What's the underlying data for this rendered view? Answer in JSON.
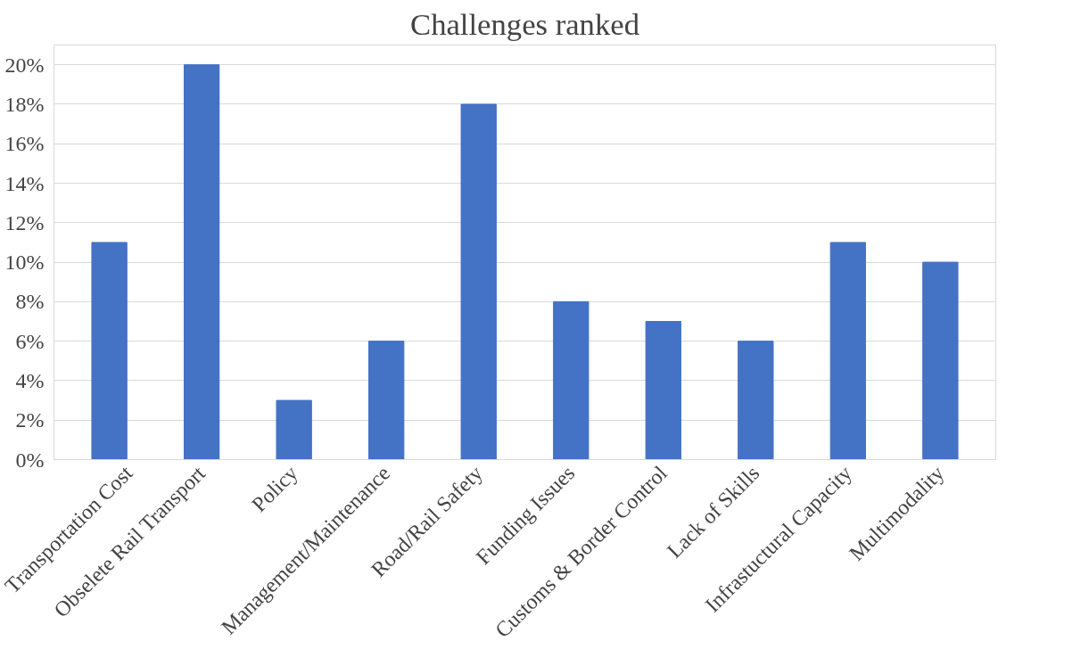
{
  "chart_data": {
    "type": "bar",
    "title": "Challenges ranked",
    "categories": [
      "Transportation Cost",
      "Obselete Rail Transport",
      "Policy",
      "Management/Maintenance",
      "Road/Rail Safety",
      "Funding Issues",
      "Customs & Border Control",
      "Lack of Skills",
      "Infrastuctural Capacity",
      "Multimodality"
    ],
    "values": [
      11,
      20,
      3,
      6,
      18,
      8,
      7,
      6,
      11,
      10
    ],
    "color": "#4472c4",
    "ylim": [
      0,
      21
    ],
    "yticks": [
      {
        "value": 0,
        "label": "0%"
      },
      {
        "value": 2,
        "label": "2%"
      },
      {
        "value": 4,
        "label": "4%"
      },
      {
        "value": 6,
        "label": "6%"
      },
      {
        "value": 8,
        "label": "8%"
      },
      {
        "value": 10,
        "label": "10%"
      },
      {
        "value": 12,
        "label": "12%"
      },
      {
        "value": 14,
        "label": "14%"
      },
      {
        "value": 16,
        "label": "16%"
      },
      {
        "value": 18,
        "label": "18%"
      },
      {
        "value": 20,
        "label": "20%"
      }
    ],
    "grid": "y"
  }
}
